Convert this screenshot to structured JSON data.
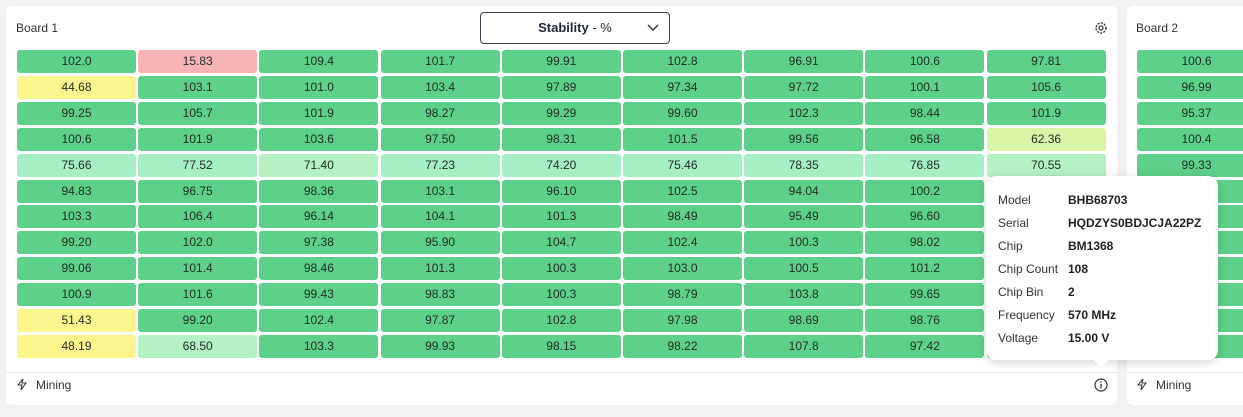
{
  "dropdown": {
    "metric": "Stability",
    "suffix": "- %"
  },
  "board1": {
    "title": "Board 1",
    "footer": "Mining",
    "rows": [
      [
        "102.0",
        "15.83",
        "109.4",
        "101.7",
        "99.91",
        "102.8",
        "96.91",
        "100.6",
        "97.81"
      ],
      [
        "44.68",
        "103.1",
        "101.0",
        "103.4",
        "97.89",
        "97.34",
        "97.72",
        "100.1",
        "105.6"
      ],
      [
        "99.25",
        "105.7",
        "101.9",
        "98.27",
        "99.29",
        "99.60",
        "102.3",
        "98.44",
        "101.9"
      ],
      [
        "100.6",
        "101.9",
        "103.6",
        "97.50",
        "98.31",
        "101.5",
        "99.56",
        "96.58",
        "62.36"
      ],
      [
        "75.66",
        "77.52",
        "71.40",
        "77.23",
        "74.20",
        "75.46",
        "78.35",
        "76.85",
        "70.55"
      ],
      [
        "94.83",
        "96.75",
        "98.36",
        "103.1",
        "96.10",
        "102.5",
        "94.04",
        "100.2"
      ],
      [
        "103.3",
        "106.4",
        "96.14",
        "104.1",
        "101.3",
        "98.49",
        "95.49",
        "96.60"
      ],
      [
        "99.20",
        "102.0",
        "97.38",
        "95.90",
        "104.7",
        "102.4",
        "100.3",
        "98.02"
      ],
      [
        "99.06",
        "101.4",
        "98.46",
        "101.3",
        "100.3",
        "103.0",
        "100.5",
        "101.2"
      ],
      [
        "100.9",
        "101.6",
        "99.43",
        "98.83",
        "100.3",
        "98.79",
        "103.8",
        "99.65"
      ],
      [
        "51.43",
        "99.20",
        "102.4",
        "97.87",
        "102.8",
        "97.98",
        "98.69",
        "98.76"
      ],
      [
        "48.19",
        "68.50",
        "103.3",
        "99.93",
        "98.15",
        "98.22",
        "107.8",
        "97.42"
      ]
    ]
  },
  "board2": {
    "title": "Board 2",
    "footer": "Mining",
    "rows": [
      [
        "100.6"
      ],
      [
        "96.99"
      ],
      [
        "95.37"
      ],
      [
        "100.4"
      ],
      [
        "99.33"
      ]
    ]
  },
  "tooltip": {
    "rows": [
      {
        "label": "Model",
        "value": "BHB68703"
      },
      {
        "label": "Serial",
        "value": "HQDZYS0BDJCJA22PZ"
      },
      {
        "label": "Chip",
        "value": "BM1368"
      },
      {
        "label": "Chip Count",
        "value": "108"
      },
      {
        "label": "Chip Bin",
        "value": "2"
      },
      {
        "label": "Frequency",
        "value": "570 MHz"
      },
      {
        "label": "Voltage",
        "value": "15.00 V"
      }
    ]
  }
}
